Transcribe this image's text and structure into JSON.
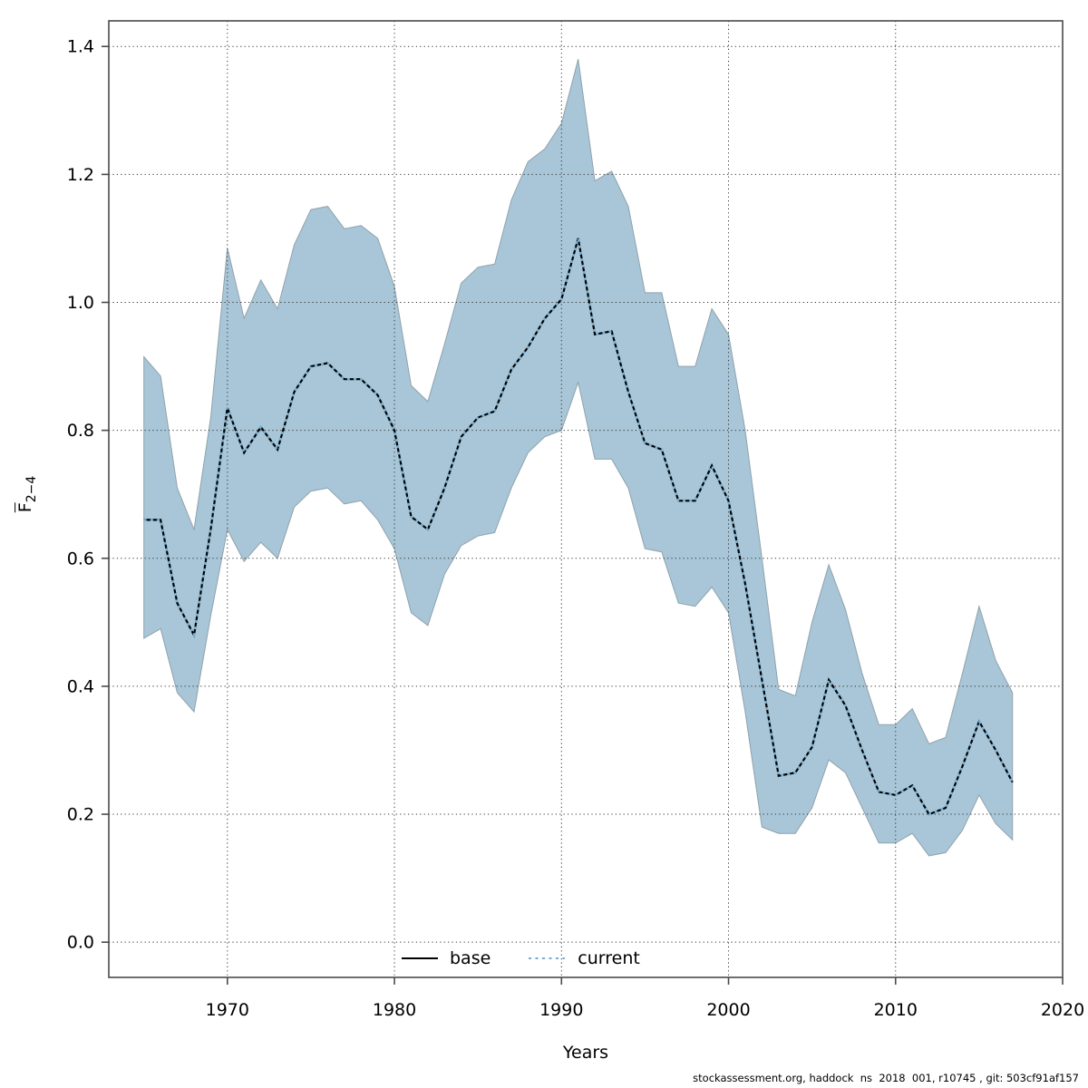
{
  "page": {
    "background": "#ffffff"
  },
  "axes": {
    "xlabel": "Years",
    "ylabel_main": "F",
    "ylabel_sub": "2−4"
  },
  "legend": {
    "items": [
      {
        "label": "base",
        "style": "solid",
        "color": "#000000"
      },
      {
        "label": "current",
        "style": "dotted",
        "color": "#75aed4"
      }
    ],
    "position": "bottom-center-inside-plot"
  },
  "footer": {
    "text": "stockassessment.org, haddock  ns  2018  001, r10745 , git: 503cf91af157"
  },
  "chart_data": {
    "type": "line",
    "title": "",
    "xlabel": "Years",
    "ylabel": "F̄2−4 (mean fishing mortality ages 2-4)",
    "x": [
      1965,
      1966,
      1967,
      1968,
      1969,
      1970,
      1971,
      1972,
      1973,
      1974,
      1975,
      1976,
      1977,
      1978,
      1979,
      1980,
      1981,
      1982,
      1983,
      1984,
      1985,
      1986,
      1987,
      1988,
      1989,
      1990,
      1991,
      1992,
      1993,
      1994,
      1995,
      1996,
      1997,
      1998,
      1999,
      2000,
      2001,
      2002,
      2003,
      2004,
      2005,
      2006,
      2007,
      2008,
      2009,
      2010,
      2011,
      2012,
      2013,
      2014,
      2015,
      2016,
      2017
    ],
    "series": [
      {
        "name": "base",
        "style": "solid-black",
        "values": [
          0.66,
          0.66,
          0.53,
          0.48,
          0.645,
          0.835,
          0.765,
          0.805,
          0.77,
          0.86,
          0.9,
          0.905,
          0.88,
          0.88,
          0.855,
          0.8,
          0.665,
          0.645,
          0.71,
          0.79,
          0.82,
          0.83,
          0.895,
          0.93,
          0.975,
          1.005,
          1.1,
          0.95,
          0.955,
          0.86,
          0.78,
          0.77,
          0.69,
          0.69,
          0.745,
          0.69,
          0.56,
          0.41,
          0.26,
          0.265,
          0.305,
          0.41,
          0.37,
          0.3,
          0.235,
          0.23,
          0.245,
          0.2,
          0.21,
          0.275,
          0.345,
          0.3,
          0.25
        ]
      },
      {
        "name": "current",
        "style": "dotted-blue",
        "values": [
          0.66,
          0.66,
          0.53,
          0.48,
          0.645,
          0.835,
          0.765,
          0.805,
          0.77,
          0.86,
          0.9,
          0.905,
          0.88,
          0.88,
          0.855,
          0.8,
          0.665,
          0.645,
          0.71,
          0.79,
          0.82,
          0.83,
          0.895,
          0.93,
          0.975,
          1.005,
          1.1,
          0.95,
          0.955,
          0.86,
          0.78,
          0.77,
          0.69,
          0.69,
          0.745,
          0.69,
          0.56,
          0.41,
          0.26,
          0.265,
          0.305,
          0.41,
          0.37,
          0.3,
          0.235,
          0.23,
          0.245,
          0.2,
          0.21,
          0.275,
          0.345,
          0.3,
          0.25
        ]
      }
    ],
    "band": {
      "name": "confidence-band",
      "fill": "#a8c6d7",
      "edge": "#8fa2ac",
      "upper": [
        0.915,
        0.885,
        0.71,
        0.645,
        0.82,
        1.085,
        0.975,
        1.035,
        0.99,
        1.09,
        1.145,
        1.15,
        1.115,
        1.12,
        1.1,
        1.025,
        0.87,
        0.845,
        0.935,
        1.03,
        1.055,
        1.06,
        1.16,
        1.22,
        1.24,
        1.28,
        1.38,
        1.19,
        1.205,
        1.15,
        1.015,
        1.015,
        0.9,
        0.9,
        0.99,
        0.95,
        0.8,
        0.6,
        0.395,
        0.385,
        0.5,
        0.59,
        0.52,
        0.42,
        0.34,
        0.34,
        0.365,
        0.31,
        0.32,
        0.42,
        0.525,
        0.44,
        0.39
      ],
      "lower": [
        0.475,
        0.49,
        0.39,
        0.36,
        0.51,
        0.645,
        0.595,
        0.625,
        0.6,
        0.68,
        0.705,
        0.71,
        0.685,
        0.69,
        0.66,
        0.615,
        0.515,
        0.495,
        0.575,
        0.62,
        0.635,
        0.64,
        0.71,
        0.765,
        0.79,
        0.8,
        0.875,
        0.755,
        0.755,
        0.71,
        0.615,
        0.61,
        0.53,
        0.525,
        0.555,
        0.515,
        0.36,
        0.18,
        0.17,
        0.17,
        0.21,
        0.285,
        0.265,
        0.21,
        0.155,
        0.155,
        0.17,
        0.135,
        0.14,
        0.175,
        0.23,
        0.185,
        0.16
      ]
    },
    "xticks": [
      1970,
      1980,
      1990,
      2000,
      2010,
      2020
    ],
    "yticks": [
      0.0,
      0.2,
      0.4,
      0.6,
      0.8,
      1.0,
      1.2,
      1.4
    ],
    "xlim": [
      1962.9,
      2020.0
    ],
    "ylim": [
      -0.055,
      1.44
    ],
    "grid": "dotted black, both axes, drawn over band",
    "legend_position": "bottom center inside plot area",
    "colors": {
      "band_fill": "#a8c6d7",
      "band_edge": "#8fa2ac",
      "base_line": "#000000",
      "current_line": "#75aed4",
      "frame": "#4a4a4a",
      "grid": "#333333"
    }
  }
}
